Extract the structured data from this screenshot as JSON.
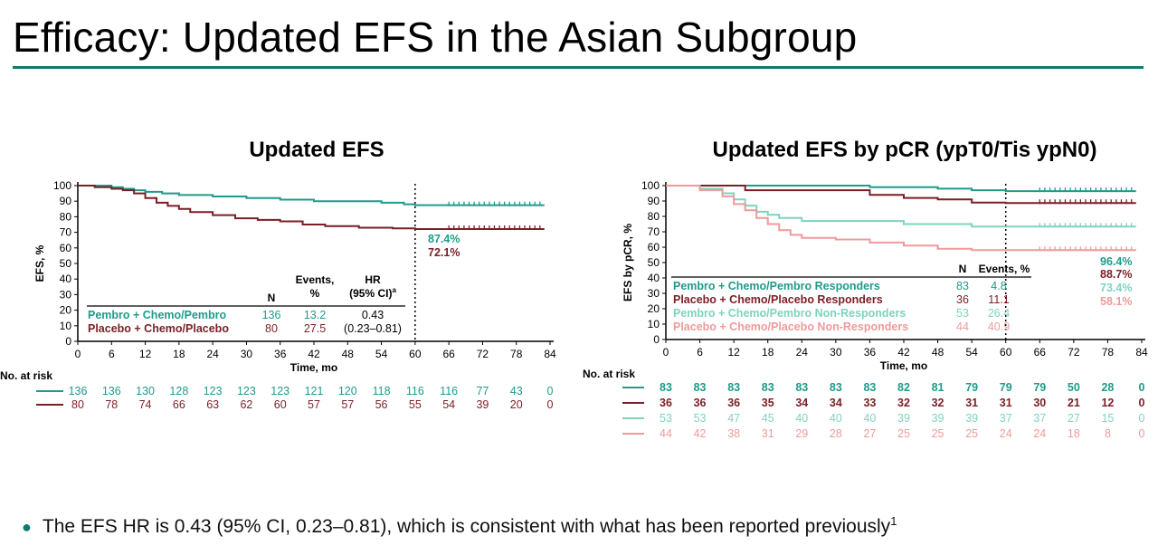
{
  "title": "Efficacy: Updated EFS in the Asian Subgroup",
  "footnote": {
    "text": "The EFS HR is 0.43 (95% CI, 0.23–0.81), which is consistent with what has been reported previously",
    "sup": "1"
  },
  "colors": {
    "title_rule": "#0f7a6e",
    "pembro": "#1f9b8a",
    "placebo": "#7a1f25",
    "pembro_nonresp": "#7fd3bd",
    "placebo_nonresp": "#ef9a9a"
  },
  "chart_data": [
    {
      "type": "line",
      "subtype": "kaplan-meier",
      "title": "Updated EFS",
      "xlabel": "Time, mo",
      "ylabel": "EFS, %",
      "xlim": [
        0,
        84
      ],
      "ylim": [
        0,
        100
      ],
      "xticks": [
        0,
        6,
        12,
        18,
        24,
        30,
        36,
        42,
        48,
        54,
        60,
        66,
        72,
        78,
        84
      ],
      "yticks": [
        0,
        10,
        20,
        30,
        40,
        50,
        60,
        70,
        80,
        90,
        100
      ],
      "reference_line_x": 60,
      "series": [
        {
          "name": "Pembro + Chemo/Pembro",
          "color": "#1f9b8a",
          "x": [
            0,
            3,
            6,
            8,
            10,
            12,
            15,
            18,
            24,
            30,
            36,
            42,
            48,
            54,
            58,
            60,
            66,
            72,
            78,
            83
          ],
          "y": [
            100,
            100,
            99,
            98,
            97,
            96,
            95,
            94,
            93,
            92,
            91,
            90,
            90,
            89,
            88,
            87.4,
            87.4,
            87.4,
            87.4,
            87.4
          ],
          "end_label": "87.4%",
          "N": "136",
          "events_pct": "13.2"
        },
        {
          "name": "Placebo + Chemo/Placebo",
          "color": "#7a1f25",
          "x": [
            0,
            3,
            6,
            8,
            10,
            12,
            14,
            16,
            18,
            20,
            24,
            28,
            32,
            36,
            40,
            44,
            50,
            56,
            60,
            66,
            72,
            78,
            83
          ],
          "y": [
            100,
            99,
            98,
            97,
            95,
            92,
            89,
            87,
            85,
            83,
            81,
            79,
            78,
            77,
            75,
            74,
            73,
            72.5,
            72.1,
            72.1,
            72.1,
            72.1,
            72.1
          ],
          "end_label": "72.1%",
          "N": "80",
          "events_pct": "27.5"
        }
      ],
      "table": {
        "headers": {
          "n": "N",
          "events": "Events,",
          "events2": "%",
          "hr": "HR",
          "hr2": "(95% CI)",
          "hr_sup": "a"
        },
        "hr_value": "0.43",
        "hr_ci": "(0.23–0.81)"
      },
      "at_risk_label": "No. at risk",
      "at_risk": [
        [
          "136",
          "136",
          "130",
          "128",
          "123",
          "123",
          "123",
          "121",
          "120",
          "118",
          "116",
          "116",
          "77",
          "43",
          "0"
        ],
        [
          "80",
          "78",
          "74",
          "66",
          "63",
          "62",
          "60",
          "57",
          "57",
          "56",
          "55",
          "54",
          "39",
          "20",
          "0"
        ]
      ]
    },
    {
      "type": "line",
      "subtype": "kaplan-meier",
      "title": "Updated EFS by pCR (ypT0/Tis ypN0)",
      "xlabel": "Time, mo",
      "ylabel": "EFS by pCR, %",
      "xlim": [
        0,
        84
      ],
      "ylim": [
        0,
        100
      ],
      "xticks": [
        0,
        6,
        12,
        18,
        24,
        30,
        36,
        42,
        48,
        54,
        60,
        66,
        72,
        78,
        84
      ],
      "yticks": [
        0,
        10,
        20,
        30,
        40,
        50,
        60,
        70,
        80,
        90,
        100
      ],
      "reference_line_x": 60,
      "series": [
        {
          "name": "Pembro + Chemo/Pembro Responders",
          "color": "#1f9b8a",
          "x": [
            0,
            10,
            20,
            30,
            36,
            42,
            48,
            54,
            60,
            66,
            72,
            78,
            83
          ],
          "y": [
            100,
            100,
            100,
            100,
            99,
            99,
            98,
            97,
            96.4,
            96.4,
            96.4,
            96.4,
            96.4
          ],
          "end_label": "96.4%",
          "N": "83",
          "events_pct": "4.8"
        },
        {
          "name": "Placebo + Chemo/Placebo Responders",
          "color": "#7a1f25",
          "x": [
            0,
            12,
            14,
            30,
            36,
            42,
            48,
            54,
            60,
            66,
            72,
            78,
            83
          ],
          "y": [
            100,
            100,
            97,
            97,
            94,
            92,
            91,
            89,
            88.7,
            88.7,
            88.7,
            88.7,
            88.7
          ],
          "end_label": "88.7%",
          "N": "36",
          "events_pct": "11.1"
        },
        {
          "name": "Pembro + Chemo/Pembro Non-Responders",
          "color": "#7fd3bd",
          "x": [
            0,
            6,
            10,
            12,
            14,
            16,
            18,
            20,
            24,
            30,
            36,
            42,
            48,
            54,
            60,
            66,
            72,
            78,
            83
          ],
          "y": [
            100,
            98,
            95,
            91,
            87,
            83,
            81,
            79,
            77,
            77,
            77,
            75,
            75,
            73.4,
            73.4,
            73.4,
            73.4,
            73.4,
            73.4
          ],
          "end_label": "73.4%",
          "N": "53",
          "events_pct": "26.4"
        },
        {
          "name": "Placebo + Chemo/Placebo Non-Responders",
          "color": "#ef9a9a",
          "x": [
            0,
            6,
            10,
            12,
            14,
            16,
            18,
            20,
            22,
            24,
            30,
            36,
            42,
            48,
            54,
            60,
            66,
            72,
            78,
            83
          ],
          "y": [
            100,
            97,
            93,
            88,
            84,
            79,
            75,
            71,
            68,
            66,
            65,
            63,
            61,
            59,
            58.1,
            58.1,
            58.1,
            58.1,
            58.1,
            58.1
          ],
          "end_label": "58.1%",
          "N": "44",
          "events_pct": "40.9"
        }
      ],
      "table": {
        "headers": {
          "n": "N",
          "events": "Events, %"
        }
      },
      "at_risk_label": "No. at risk",
      "at_risk": [
        [
          "83",
          "83",
          "83",
          "83",
          "83",
          "83",
          "83",
          "82",
          "81",
          "79",
          "79",
          "79",
          "50",
          "28",
          "0"
        ],
        [
          "36",
          "36",
          "36",
          "35",
          "34",
          "34",
          "33",
          "32",
          "32",
          "31",
          "31",
          "30",
          "21",
          "12",
          "0"
        ],
        [
          "53",
          "53",
          "47",
          "45",
          "40",
          "40",
          "40",
          "39",
          "39",
          "39",
          "37",
          "37",
          "27",
          "15",
          "0"
        ],
        [
          "44",
          "42",
          "38",
          "31",
          "29",
          "28",
          "27",
          "25",
          "25",
          "25",
          "24",
          "24",
          "18",
          "8",
          "0"
        ]
      ]
    }
  ]
}
